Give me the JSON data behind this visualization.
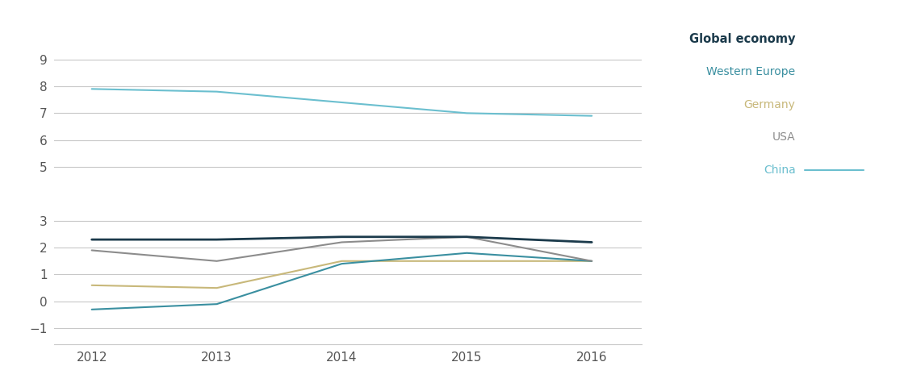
{
  "series": {
    "Global economy": {
      "x": [
        2012,
        2013,
        2014,
        2015,
        2016
      ],
      "y": [
        2.3,
        2.3,
        2.4,
        2.4,
        2.2
      ],
      "color": "#1b3a4b",
      "linewidth": 2.0,
      "zorder": 5
    },
    "Western Europe": {
      "x": [
        2012,
        2013,
        2014,
        2015,
        2016
      ],
      "y": [
        -0.3,
        -0.1,
        1.4,
        1.8,
        1.5
      ],
      "color": "#3a8fa0",
      "linewidth": 1.5,
      "zorder": 4
    },
    "Germany": {
      "x": [
        2012,
        2013,
        2014,
        2015,
        2016
      ],
      "y": [
        0.6,
        0.5,
        1.5,
        1.5,
        1.5
      ],
      "color": "#c8b87a",
      "linewidth": 1.5,
      "zorder": 3
    },
    "USA": {
      "x": [
        2012,
        2013,
        2014,
        2015,
        2016
      ],
      "y": [
        1.9,
        1.5,
        2.2,
        2.4,
        1.5
      ],
      "color": "#8c8c8c",
      "linewidth": 1.5,
      "zorder": 4
    },
    "China": {
      "x": [
        2012,
        2013,
        2014,
        2015,
        2016
      ],
      "y": [
        7.9,
        7.8,
        7.4,
        7.0,
        6.9
      ],
      "color": "#6bbfcf",
      "linewidth": 1.5,
      "zorder": 3
    }
  },
  "legend_order": [
    "Global economy",
    "Western Europe",
    "Germany",
    "USA",
    "China"
  ],
  "legend_colors": {
    "Global economy": "#1b3a4b",
    "Western Europe": "#3a8fa0",
    "Germany": "#c8b87a",
    "USA": "#8c8c8c",
    "China": "#6bbfcf"
  },
  "xlim": [
    2011.7,
    2016.4
  ],
  "ylim": [
    -1.6,
    10.2
  ],
  "yticks": [
    -1,
    0,
    1,
    2,
    3,
    5,
    6,
    7,
    8,
    9
  ],
  "xticks": [
    2012,
    2013,
    2014,
    2015,
    2016
  ],
  "background_color": "#ffffff",
  "grid_color": "#c8c8c8"
}
